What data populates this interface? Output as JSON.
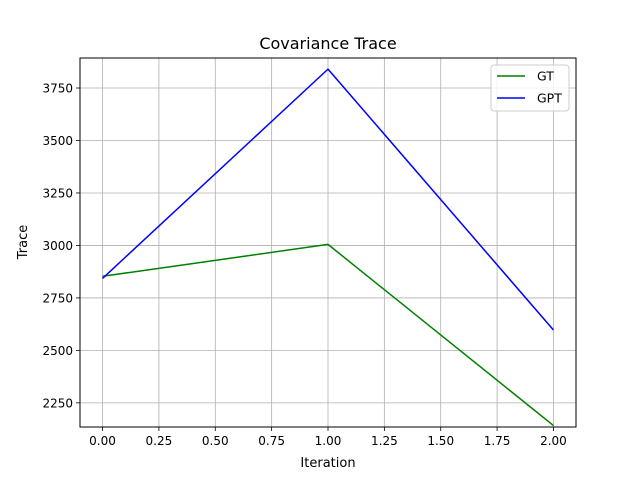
{
  "chart_data": {
    "type": "line",
    "title": "Covariance Trace",
    "xlabel": "Iteration",
    "ylabel": "Trace",
    "x": [
      0,
      1,
      2
    ],
    "series": [
      {
        "name": "GT",
        "color": "#008000",
        "values": [
          2853,
          3005,
          2142
        ]
      },
      {
        "name": "GPT",
        "color": "#0000ff",
        "values": [
          2843,
          3840,
          2597
        ]
      }
    ],
    "xlim": [
      -0.1,
      2.1
    ],
    "ylim": [
      2135,
      3893
    ],
    "xticks": [
      0.0,
      0.25,
      0.5,
      0.75,
      1.0,
      1.25,
      1.5,
      1.75,
      2.0
    ],
    "xtick_labels": [
      "0.00",
      "0.25",
      "0.50",
      "0.75",
      "1.00",
      "1.25",
      "1.50",
      "1.75",
      "2.00"
    ],
    "yticks": [
      2250,
      2500,
      2750,
      3000,
      3250,
      3500,
      3750
    ],
    "ytick_labels": [
      "2250",
      "2500",
      "2750",
      "3000",
      "3250",
      "3500",
      "3750"
    ],
    "grid": true,
    "legend_position": "top-right"
  }
}
